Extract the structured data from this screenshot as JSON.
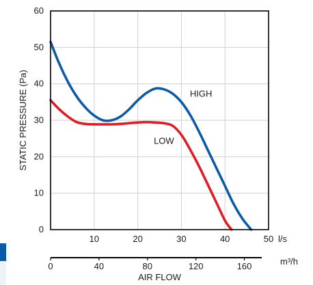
{
  "chart_data": {
    "type": "line",
    "ylabel": "STATIC PRESSURE (Pa)",
    "xlabel": "AIR FLOW",
    "x_unit_primary": "l/s",
    "x_unit_secondary": "m³/h",
    "xlim": [
      0,
      50
    ],
    "ylim": [
      0,
      60
    ],
    "x_ticks": [
      "10",
      "20",
      "30",
      "40",
      "50"
    ],
    "y_ticks": [
      "0",
      "10",
      "20",
      "30",
      "40",
      "50",
      "60"
    ],
    "x2_ticks": [
      "0",
      "40",
      "80",
      "120",
      "160"
    ],
    "grid": true,
    "series": [
      {
        "name": "HIGH",
        "color": "#0a5aa8",
        "x": [
          0,
          2,
          4,
          6,
          8,
          10,
          12,
          14,
          16,
          18,
          20,
          22,
          24,
          26,
          28,
          30,
          32,
          34,
          36,
          38,
          40,
          42,
          44,
          46
        ],
        "y": [
          51.5,
          45.5,
          40.5,
          36.5,
          33.5,
          31.3,
          30.0,
          30.0,
          31.0,
          33.0,
          35.5,
          37.5,
          38.7,
          38.5,
          37.3,
          35.0,
          31.5,
          27.0,
          22.0,
          17.0,
          12.0,
          7.0,
          3.0,
          0
        ]
      },
      {
        "name": "LOW",
        "color": "#e01b24",
        "x": [
          0,
          2,
          4,
          6,
          8,
          10,
          12,
          14,
          16,
          18,
          20,
          22,
          24,
          26,
          28,
          30,
          32,
          34,
          36,
          38,
          40,
          41.5
        ],
        "y": [
          35.5,
          33.0,
          31.0,
          29.5,
          29.0,
          28.9,
          28.9,
          28.9,
          29.0,
          29.2,
          29.4,
          29.5,
          29.4,
          29.2,
          28.5,
          26.0,
          22.0,
          17.5,
          12.5,
          7.5,
          2.5,
          0
        ]
      }
    ]
  }
}
